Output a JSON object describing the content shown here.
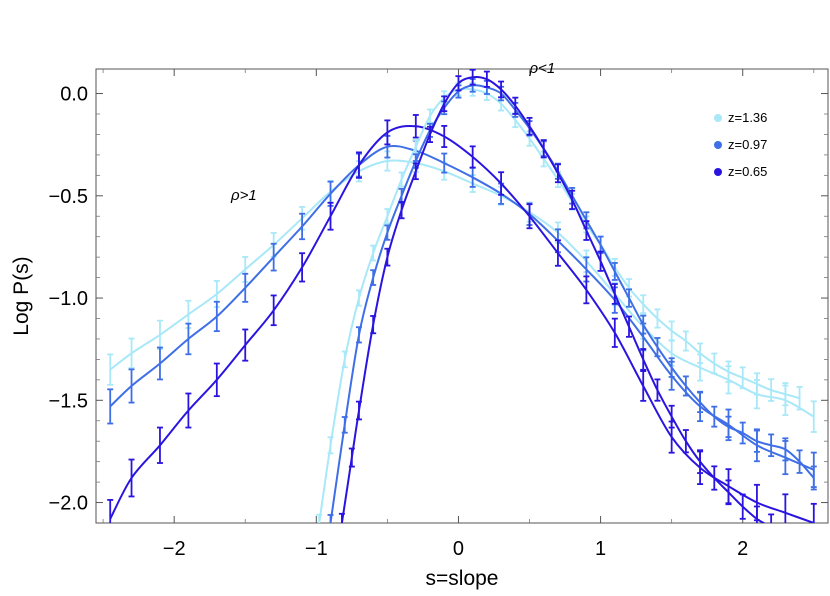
{
  "chart_data": {
    "type": "line",
    "title": "",
    "xlabel": "s=slope",
    "ylabel": "Log P(s)",
    "xlim": [
      -2.55,
      2.6
    ],
    "ylim": [
      -2.1,
      0.12
    ],
    "xticks": [
      -2,
      -1,
      0,
      1,
      2
    ],
    "yticks": [
      0.0,
      -0.5,
      -1.0,
      -1.5,
      -2.0
    ],
    "xtick_labels": [
      "−2",
      "−1",
      "0",
      "1",
      "2"
    ],
    "ytick_labels": [
      "0.0",
      "−0.5",
      "−1.0",
      "−1.5",
      "−2.0"
    ],
    "grid": false,
    "legend_position": "top-right",
    "annotations": [
      {
        "text": "ρ>1",
        "x": -1.6,
        "y": -0.52
      },
      {
        "text": "ρ<1",
        "x": 0.5,
        "y": 0.1
      }
    ],
    "series": [
      {
        "name": "z=1.36",
        "color": "#a8e8f8",
        "group": "rho>1",
        "x": [
          -2.45,
          -2.3,
          -2.1,
          -1.9,
          -1.7,
          -1.5,
          -1.3,
          -1.1,
          -0.9,
          -0.7,
          -0.5,
          -0.3,
          -0.1,
          0.1,
          0.3,
          0.5,
          0.7,
          0.9,
          1.1,
          1.3,
          1.5,
          1.7,
          1.9,
          2.1,
          2.3,
          2.5
        ],
        "y": [
          -1.35,
          -1.27,
          -1.18,
          -1.08,
          -0.98,
          -0.86,
          -0.74,
          -0.61,
          -0.48,
          -0.38,
          -0.33,
          -0.34,
          -0.38,
          -0.44,
          -0.5,
          -0.58,
          -0.68,
          -0.82,
          -0.98,
          -1.14,
          -1.27,
          -1.34,
          -1.4,
          -1.47,
          -1.5,
          -1.58
        ],
        "err": 0.04
      },
      {
        "name": "z=0.97",
        "color": "#3f6fe6",
        "group": "rho>1",
        "x": [
          -2.45,
          -2.3,
          -2.1,
          -1.9,
          -1.7,
          -1.5,
          -1.3,
          -1.1,
          -0.9,
          -0.7,
          -0.5,
          -0.3,
          -0.1,
          0.1,
          0.3,
          0.5,
          0.7,
          0.9,
          1.1,
          1.3,
          1.5,
          1.7,
          1.9,
          2.1,
          2.3,
          2.5
        ],
        "y": [
          -1.53,
          -1.43,
          -1.32,
          -1.2,
          -1.09,
          -0.95,
          -0.8,
          -0.65,
          -0.49,
          -0.35,
          -0.26,
          -0.28,
          -0.34,
          -0.41,
          -0.49,
          -0.59,
          -0.72,
          -0.86,
          -1.01,
          -1.19,
          -1.38,
          -1.53,
          -1.62,
          -1.72,
          -1.78,
          -1.84
        ],
        "err": 0.045
      },
      {
        "name": "z=0.65",
        "color": "#2a14e0",
        "group": "rho>1",
        "x": [
          -2.45,
          -2.3,
          -2.1,
          -1.9,
          -1.7,
          -1.5,
          -1.3,
          -1.1,
          -0.9,
          -0.7,
          -0.5,
          -0.3,
          -0.1,
          0.1,
          0.3,
          0.5,
          0.7,
          0.9,
          1.1,
          1.3,
          1.5,
          1.7,
          1.9,
          2.1,
          2.3,
          2.5
        ],
        "y": [
          -2.08,
          -1.88,
          -1.72,
          -1.55,
          -1.4,
          -1.23,
          -1.06,
          -0.85,
          -0.6,
          -0.35,
          -0.19,
          -0.16,
          -0.21,
          -0.31,
          -0.44,
          -0.6,
          -0.78,
          -0.96,
          -1.17,
          -1.43,
          -1.68,
          -1.83,
          -1.92,
          -2.0,
          -2.05,
          -2.1
        ],
        "err": 0.05
      },
      {
        "name": "z=1.36",
        "color": "#a8e8f8",
        "group": "rho<1",
        "x": [
          -0.98,
          -0.9,
          -0.8,
          -0.7,
          -0.6,
          -0.5,
          -0.4,
          -0.3,
          -0.2,
          -0.1,
          0.0,
          0.1,
          0.2,
          0.3,
          0.4,
          0.5,
          0.6,
          0.7,
          0.8,
          0.9,
          1.0,
          1.1,
          1.2,
          1.3,
          1.4,
          1.5,
          1.6,
          1.7,
          1.8,
          1.9,
          2.0,
          2.1,
          2.2,
          2.3,
          2.4
        ],
        "y": [
          -2.1,
          -1.72,
          -1.3,
          -1.0,
          -0.78,
          -0.6,
          -0.42,
          -0.26,
          -0.11,
          -0.02,
          0.02,
          0.02,
          0.0,
          -0.05,
          -0.13,
          -0.22,
          -0.32,
          -0.42,
          -0.53,
          -0.64,
          -0.74,
          -0.85,
          -0.95,
          -1.03,
          -1.1,
          -1.16,
          -1.21,
          -1.27,
          -1.32,
          -1.36,
          -1.39,
          -1.42,
          -1.45,
          -1.47,
          -1.49
        ],
        "err": 0.03
      },
      {
        "name": "z=0.97",
        "color": "#3f6fe6",
        "group": "rho<1",
        "x": [
          -0.9,
          -0.8,
          -0.7,
          -0.6,
          -0.5,
          -0.4,
          -0.3,
          -0.2,
          -0.1,
          0.0,
          0.1,
          0.2,
          0.3,
          0.4,
          0.5,
          0.6,
          0.7,
          0.8,
          0.9,
          1.0,
          1.1,
          1.2,
          1.3,
          1.4,
          1.5,
          1.6,
          1.7,
          1.8,
          1.9,
          2.0,
          2.1,
          2.2,
          2.3,
          2.4,
          2.5
        ],
        "y": [
          -2.1,
          -1.62,
          -1.18,
          -0.9,
          -0.68,
          -0.5,
          -0.33,
          -0.18,
          -0.07,
          0.01,
          0.04,
          0.03,
          0.0,
          -0.08,
          -0.17,
          -0.27,
          -0.38,
          -0.5,
          -0.62,
          -0.74,
          -0.87,
          -1.0,
          -1.13,
          -1.24,
          -1.34,
          -1.43,
          -1.51,
          -1.58,
          -1.63,
          -1.66,
          -1.7,
          -1.72,
          -1.74,
          -1.8,
          -1.88
        ],
        "err": 0.03
      },
      {
        "name": "z=0.65",
        "color": "#2a14e0",
        "group": "rho<1",
        "x": [
          -0.82,
          -0.75,
          -0.7,
          -0.6,
          -0.5,
          -0.4,
          -0.3,
          -0.2,
          -0.1,
          0.0,
          0.1,
          0.2,
          0.3,
          0.4,
          0.5,
          0.6,
          0.7,
          0.8,
          0.9,
          1.0,
          1.1,
          1.2,
          1.3,
          1.4,
          1.5,
          1.6,
          1.7,
          1.8,
          1.9,
          2.0,
          2.1,
          2.2
        ],
        "y": [
          -2.1,
          -1.78,
          -1.55,
          -1.13,
          -0.8,
          -0.57,
          -0.38,
          -0.2,
          -0.05,
          0.05,
          0.08,
          0.07,
          0.02,
          -0.06,
          -0.16,
          -0.27,
          -0.39,
          -0.52,
          -0.67,
          -0.82,
          -0.98,
          -1.14,
          -1.3,
          -1.45,
          -1.58,
          -1.7,
          -1.8,
          -1.88,
          -1.95,
          -2.02,
          -2.08,
          -2.12
        ],
        "err": 0.035
      }
    ],
    "legend": [
      {
        "label": "z=1.36",
        "color": "#a8e8f8"
      },
      {
        "label": "z=0.97",
        "color": "#3f6fe6"
      },
      {
        "label": "z=0.65",
        "color": "#2a14e0"
      }
    ]
  }
}
